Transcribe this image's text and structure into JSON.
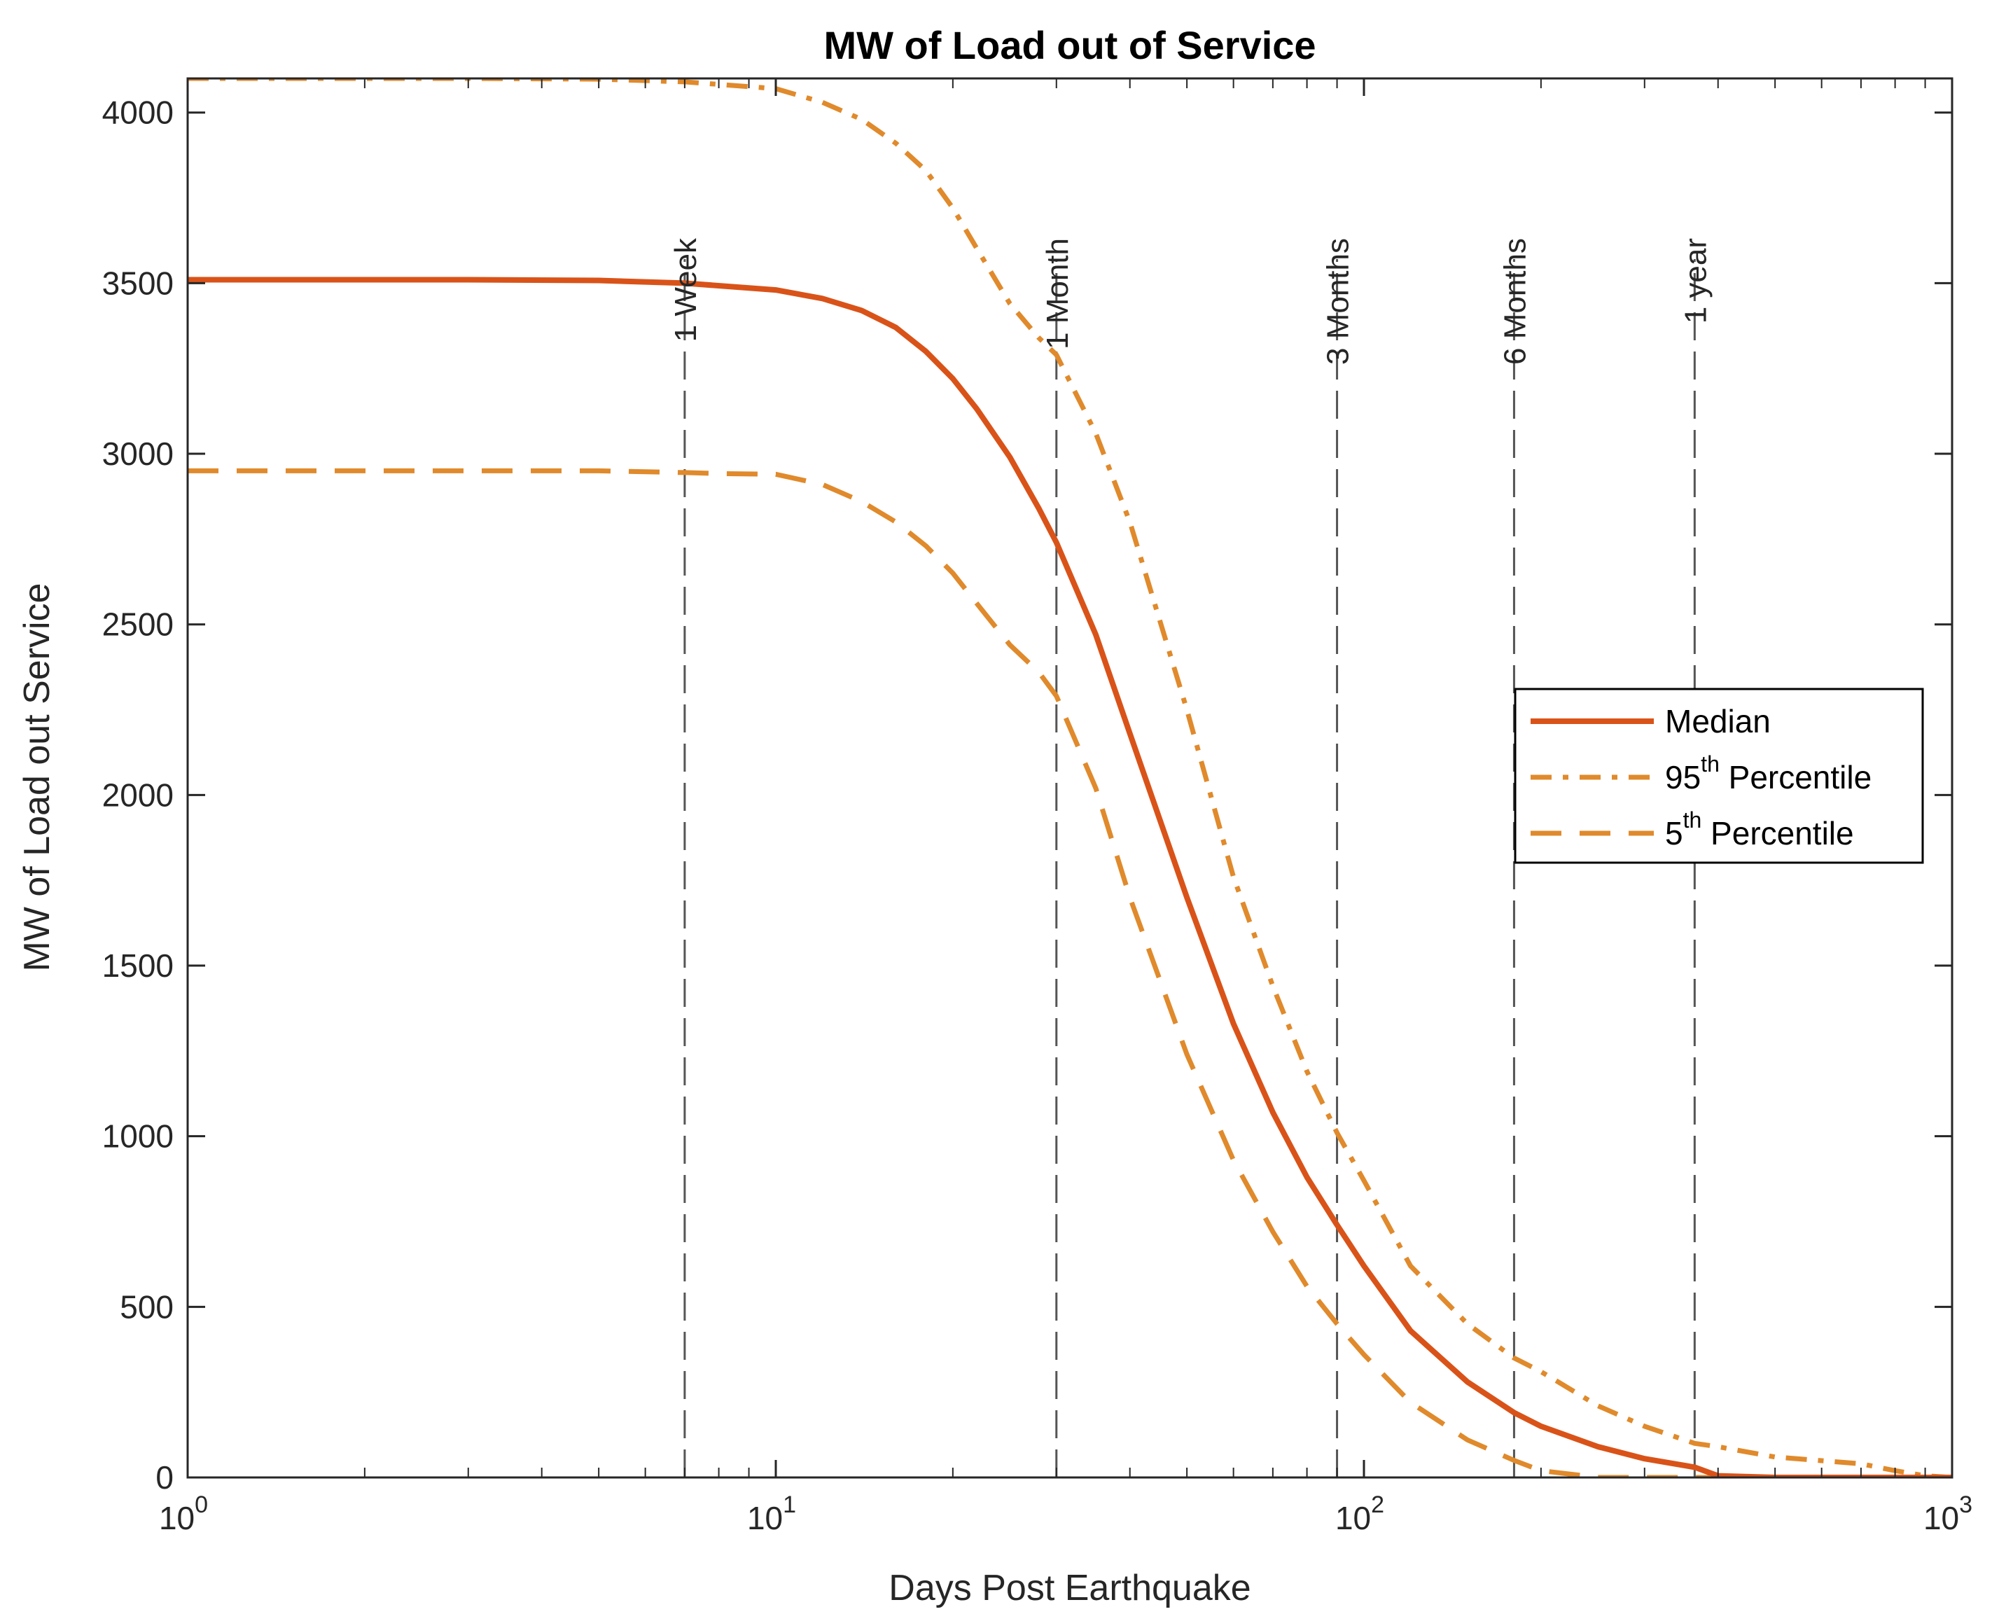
{
  "chart_data": {
    "type": "line",
    "title": "MW of Load out of Service",
    "xlabel": "Days Post Earthquake",
    "ylabel": "MW of Load out Service",
    "xscale": "log",
    "xlim": [
      1,
      1000
    ],
    "ylim": [
      0,
      4100
    ],
    "x_ticks": [
      {
        "value": 1,
        "base": "10",
        "exp": "0"
      },
      {
        "value": 10,
        "base": "10",
        "exp": "1"
      },
      {
        "value": 100,
        "base": "10",
        "exp": "2"
      },
      {
        "value": 1000,
        "base": "10",
        "exp": "3"
      }
    ],
    "y_ticks": [
      {
        "value": 0,
        "label": "0"
      },
      {
        "value": 500,
        "label": "500"
      },
      {
        "value": 1000,
        "label": "1000"
      },
      {
        "value": 1500,
        "label": "1500"
      },
      {
        "value": 2000,
        "label": "2000"
      },
      {
        "value": 2500,
        "label": "2500"
      },
      {
        "value": 3000,
        "label": "3000"
      },
      {
        "value": 3500,
        "label": "3500"
      },
      {
        "value": 4000,
        "label": "4000"
      }
    ],
    "reference_lines": [
      {
        "x": 7,
        "label": "1 Week"
      },
      {
        "x": 30,
        "label": "1 Month"
      },
      {
        "x": 90,
        "label": "3 Months"
      },
      {
        "x": 180,
        "label": "6 Months"
      },
      {
        "x": 365,
        "label": "1 year"
      }
    ],
    "legend_position": "right",
    "series": [
      {
        "name": "Median",
        "legend_label": "Median",
        "legend_sup": "",
        "legend_suffix": "",
        "color": "#D95319",
        "dash": "solid",
        "x": [
          1,
          2,
          3,
          5,
          7,
          10,
          12,
          14,
          16,
          18,
          20,
          22,
          25,
          28,
          30,
          35,
          40,
          50,
          60,
          70,
          80,
          90,
          100,
          120,
          150,
          180,
          200,
          250,
          300,
          365,
          400,
          500,
          700,
          1000
        ],
        "y": [
          3510,
          3510,
          3510,
          3508,
          3500,
          3480,
          3455,
          3420,
          3370,
          3300,
          3220,
          3130,
          2990,
          2840,
          2740,
          2470,
          2180,
          1700,
          1330,
          1070,
          880,
          740,
          620,
          430,
          280,
          190,
          150,
          90,
          55,
          30,
          5,
          0,
          0,
          0
        ]
      },
      {
        "name": "95th Percentile",
        "legend_label": "95",
        "legend_sup": "th",
        "legend_suffix": " Percentile",
        "color": "#E08A2C",
        "dash": "dashdot",
        "x": [
          1,
          2,
          3,
          5,
          7,
          10,
          12,
          14,
          16,
          18,
          20,
          22,
          25,
          28,
          30,
          35,
          40,
          50,
          60,
          70,
          80,
          90,
          100,
          120,
          150,
          180,
          200,
          250,
          300,
          365,
          400,
          500,
          700,
          800,
          900,
          1000
        ],
        "y": [
          4100,
          4100,
          4100,
          4098,
          4090,
          4070,
          4030,
          3980,
          3910,
          3830,
          3720,
          3600,
          3440,
          3340,
          3290,
          3060,
          2800,
          2250,
          1760,
          1440,
          1190,
          1010,
          870,
          620,
          450,
          350,
          310,
          210,
          150,
          100,
          90,
          60,
          40,
          20,
          5,
          0
        ]
      },
      {
        "name": "5th Percentile",
        "legend_label": "5",
        "legend_sup": "th",
        "legend_suffix": " Percentile",
        "color": "#E08A2C",
        "dash": "dashed",
        "x": [
          1,
          2,
          3,
          5,
          7,
          8,
          10,
          12,
          14,
          16,
          18,
          20,
          22,
          25,
          28,
          30,
          35,
          40,
          50,
          60,
          70,
          80,
          90,
          100,
          120,
          150,
          180,
          200,
          250,
          300,
          400,
          500,
          700,
          1000
        ],
        "y": [
          2950,
          2950,
          2950,
          2950,
          2945,
          2942,
          2940,
          2910,
          2860,
          2800,
          2730,
          2650,
          2560,
          2440,
          2360,
          2290,
          2020,
          1700,
          1240,
          930,
          720,
          560,
          450,
          360,
          220,
          110,
          50,
          20,
          0,
          0,
          0,
          0,
          0,
          0
        ]
      }
    ]
  }
}
